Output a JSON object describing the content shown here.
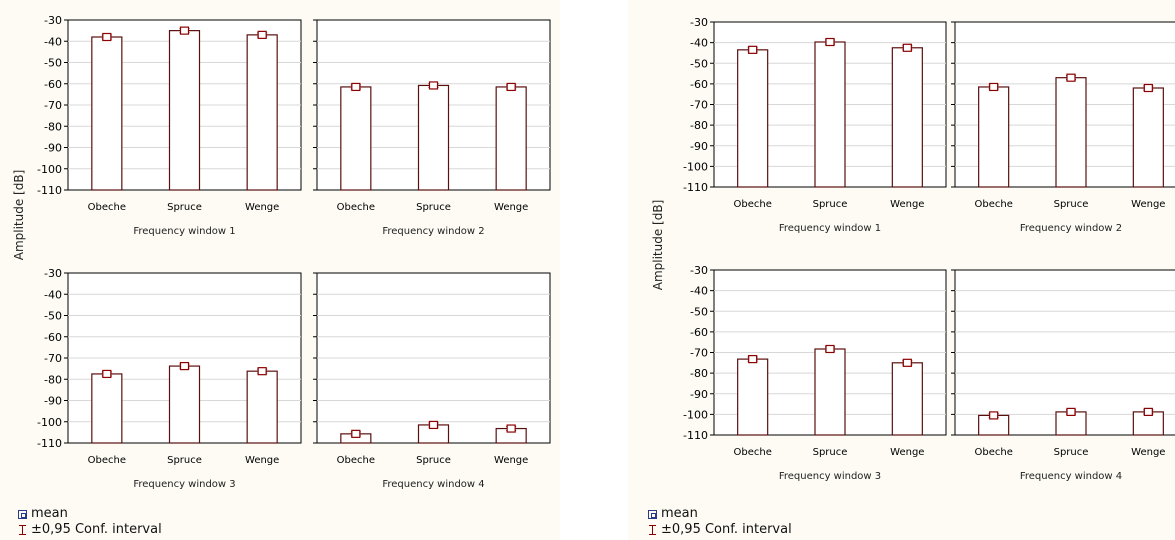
{
  "chart_data": [
    {
      "type": "bar",
      "ylabel": "Amplitude [dB]",
      "ylim": [
        -110,
        -30
      ],
      "yticks": [
        -30,
        -40,
        -50,
        -60,
        -70,
        -80,
        -90,
        -100,
        -110
      ],
      "ytick_labels": [
        "-30",
        "-40",
        "-50",
        "-60",
        "-70",
        "-80",
        "-90",
        "-100",
        "-110"
      ],
      "categories": [
        "Obeche",
        "Spruce",
        "Wenge"
      ],
      "panels": [
        {
          "title": "Frequency window 1",
          "values": [
            -38,
            -35,
            -37
          ]
        },
        {
          "title": "Frequency window 2",
          "values": [
            -61.5,
            -60.8,
            -61.5
          ]
        },
        {
          "title": "Frequency window 3",
          "values": [
            -77.5,
            -73.8,
            -76.2
          ]
        },
        {
          "title": "Frequency window 4",
          "values": [
            -105.7,
            -101.5,
            -103.2
          ]
        }
      ],
      "legend": {
        "mean": "mean",
        "ci": "±0,95 Conf. interval"
      },
      "grid": true
    },
    {
      "type": "bar",
      "ylabel": "Amplitude [dB]",
      "ylim": [
        -110,
        -30
      ],
      "yticks": [
        -30,
        -40,
        -50,
        -60,
        -70,
        -80,
        -90,
        -100,
        -110
      ],
      "ytick_labels": [
        "-30",
        "-40",
        "-50",
        "-60",
        "-70",
        "-80",
        "-90",
        "-100",
        "-110"
      ],
      "categories": [
        "Obeche",
        "Spruce",
        "Wenge"
      ],
      "panels": [
        {
          "title": "Frequency window 1",
          "values": [
            -43.5,
            -39.7,
            -42.5
          ]
        },
        {
          "title": "Frequency window 2",
          "values": [
            -61.5,
            -57,
            -62
          ]
        },
        {
          "title": "Frequency window 3",
          "values": [
            -73.2,
            -68.3,
            -75
          ]
        },
        {
          "title": "Frequency window 4",
          "values": [
            -100.5,
            -98.8,
            -98.8
          ]
        }
      ],
      "legend": {
        "mean": "mean",
        "ci": "±0,95 Conf. interval"
      },
      "grid": true
    }
  ]
}
